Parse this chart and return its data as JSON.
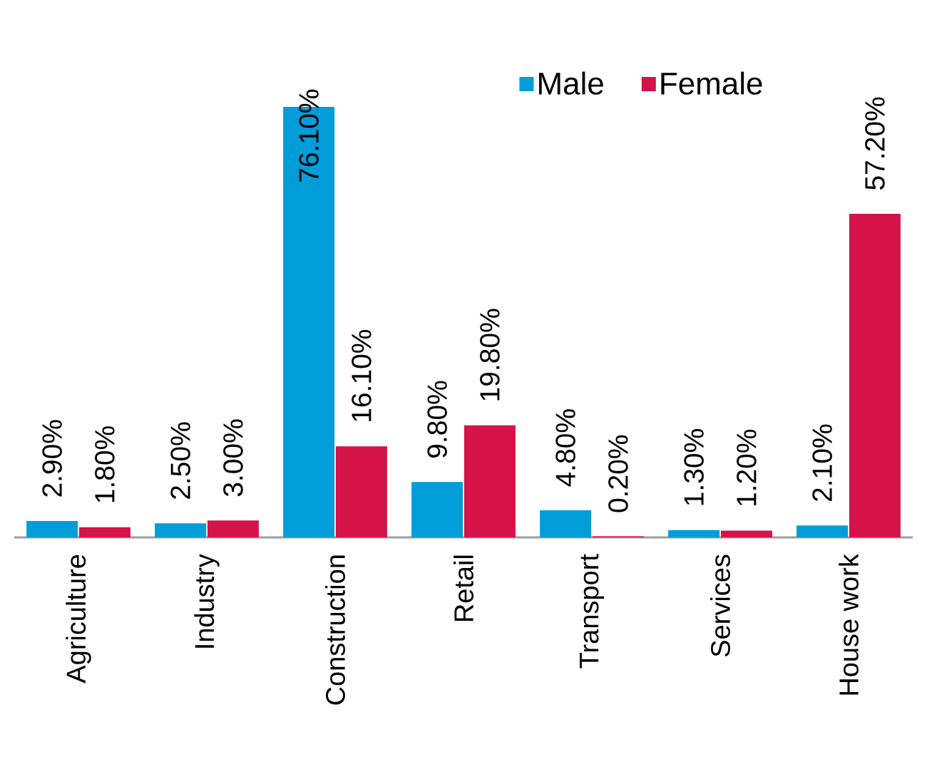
{
  "chart_data": {
    "type": "bar",
    "categories": [
      "Agriculture",
      "Industry",
      "Construction",
      "Retail",
      "Transport",
      "Services",
      "House work"
    ],
    "series": [
      {
        "name": "Male",
        "color": "#009dd9",
        "values": [
          2.9,
          2.5,
          76.1,
          9.8,
          4.8,
          1.3,
          2.1
        ],
        "value_labels": [
          "2.90%",
          "2.50%",
          "76.10%",
          "9.80%",
          "4.80%",
          "1.30%",
          "2.10%"
        ]
      },
      {
        "name": "Female",
        "color": "#d41349",
        "values": [
          1.8,
          3.0,
          16.1,
          19.8,
          0.2,
          1.2,
          57.2
        ],
        "value_labels": [
          "1.80%",
          "3.00%",
          "16.10%",
          "19.80%",
          "0.20%",
          "1.20%",
          "57.20%"
        ]
      }
    ],
    "legend": "top right",
    "tick_labels": "x"
  }
}
